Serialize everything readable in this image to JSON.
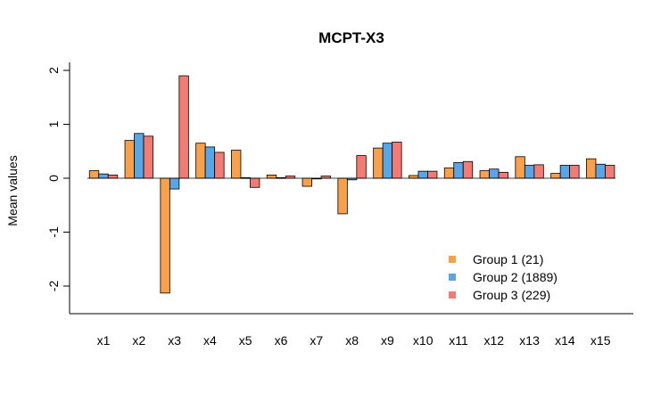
{
  "chart_data": {
    "type": "bar",
    "title": "MCPT-X3",
    "xlabel": "",
    "ylabel": "Mean values",
    "ylim": [
      -2.5,
      2.1
    ],
    "yticks": [
      "-2",
      "-1",
      "0",
      "1",
      "2"
    ],
    "ytick_values": [
      -2,
      -1,
      0,
      1,
      2
    ],
    "legend_position": "bottom-right",
    "categories": [
      "x1",
      "x2",
      "x3",
      "x4",
      "x5",
      "x6",
      "x7",
      "x8",
      "x9",
      "x10",
      "x11",
      "x12",
      "x13",
      "x14",
      "x15"
    ],
    "series": [
      {
        "name": "Group 1 (21)",
        "color": "#F8A04A",
        "values": [
          0.14,
          0.7,
          -2.13,
          0.65,
          0.52,
          0.06,
          -0.15,
          -0.66,
          0.56,
          0.05,
          0.19,
          0.14,
          0.4,
          0.09,
          0.36
        ]
      },
      {
        "name": "Group 2 (1889)",
        "color": "#56A6E8",
        "values": [
          0.08,
          0.83,
          -0.2,
          0.58,
          0.01,
          0.01,
          0.0,
          -0.03,
          0.65,
          0.13,
          0.29,
          0.17,
          0.24,
          0.24,
          0.26
        ]
      },
      {
        "name": "Group 3 (229)",
        "color": "#F47B73",
        "values": [
          0.06,
          0.78,
          1.9,
          0.48,
          -0.17,
          0.04,
          0.04,
          0.42,
          0.67,
          0.13,
          0.31,
          0.11,
          0.25,
          0.24,
          0.24
        ]
      }
    ]
  }
}
